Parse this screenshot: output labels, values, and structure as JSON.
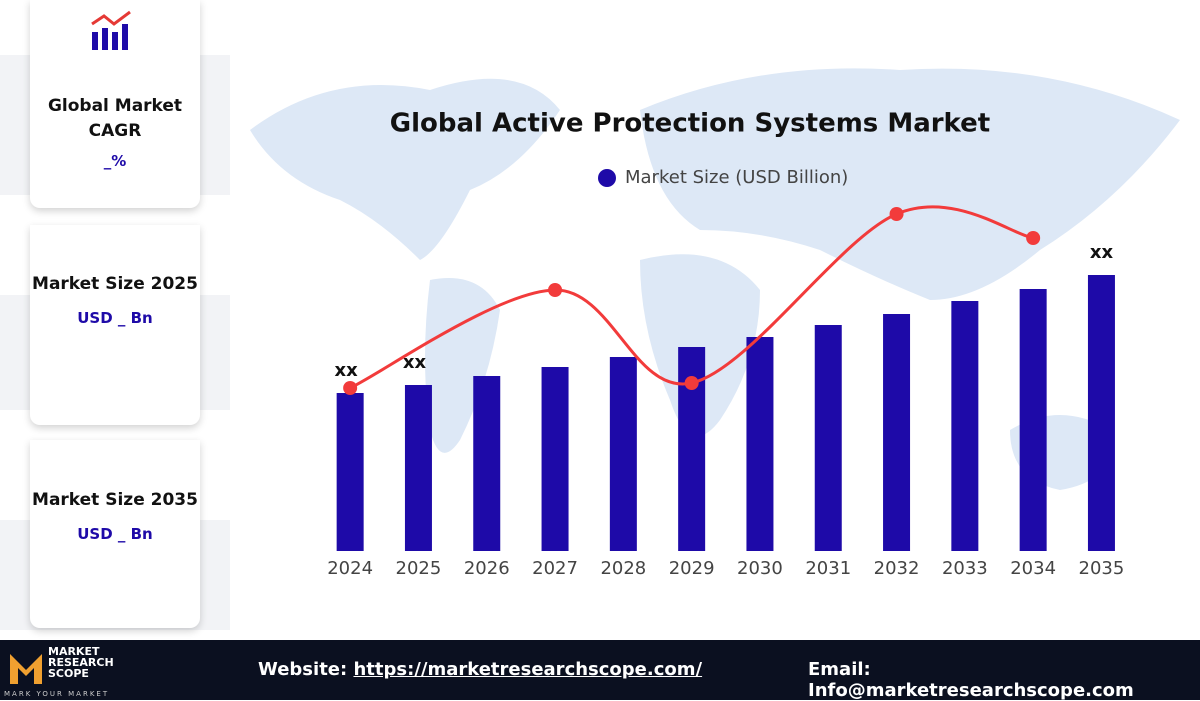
{
  "sidebar": {
    "cards": [
      {
        "title": "Global Market CAGR",
        "value": "_%"
      },
      {
        "title": "Market Size 2025",
        "value": "USD _ Bn"
      },
      {
        "title": "Market Size 2035",
        "value": "USD _ Bn"
      }
    ]
  },
  "chart_data": {
    "type": "bar",
    "title": "Global Active Protection Systems Market",
    "categories": [
      "2024",
      "2025",
      "2026",
      "2027",
      "2028",
      "2029",
      "2030",
      "2031",
      "2032",
      "2033",
      "2034",
      "2035"
    ],
    "series": [
      {
        "name": "Market Size (USD Billion)",
        "color": "#1e0aa8",
        "values": [
          158,
          166,
          175,
          184,
          194,
          204,
          214,
          226,
          237,
          250,
          262,
          276
        ],
        "value_labels": [
          "xx",
          "xx",
          null,
          null,
          null,
          null,
          null,
          null,
          null,
          null,
          null,
          "xx"
        ]
      }
    ],
    "line": {
      "color": "#f23b3b",
      "x": [
        2024,
        2027,
        2029,
        2032,
        2034
      ],
      "values": [
        163,
        261,
        168,
        337,
        313
      ]
    },
    "ylim": [
      0,
      400
    ]
  },
  "footer": {
    "logo_line1": "MARKET",
    "logo_line2": "RESEARCH",
    "logo_line3": "SCOPE",
    "tagline": "MARK YOUR MARKET",
    "website_label": "Website:",
    "website": "https://marketresearchscope.com/",
    "email_label": "Email:",
    "email": "Info@marketresearchscope.com"
  }
}
